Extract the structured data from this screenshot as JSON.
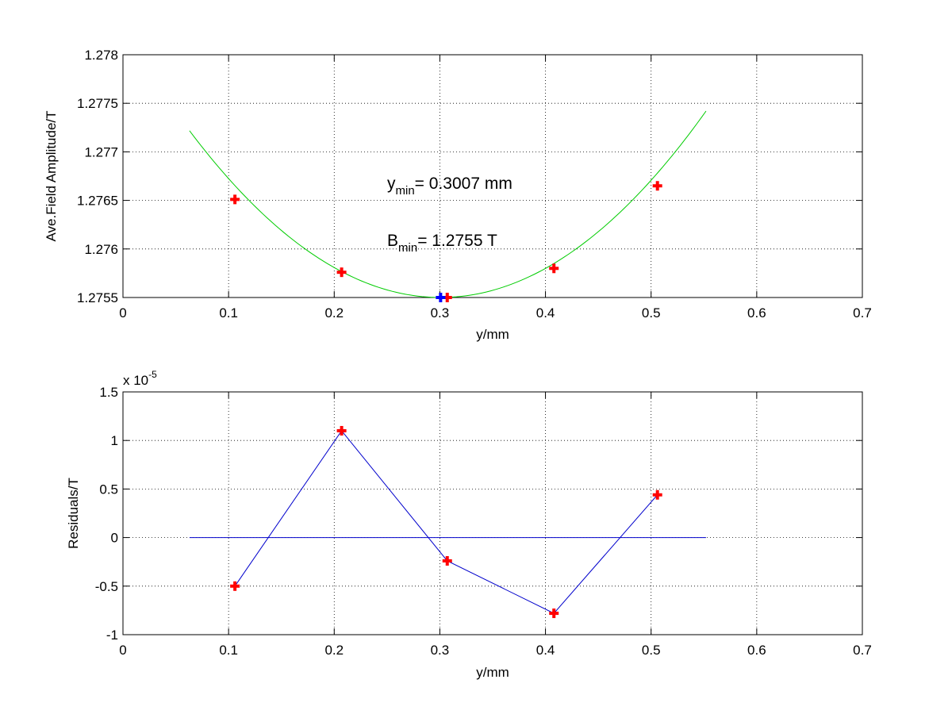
{
  "chart_data": [
    {
      "type": "scatter",
      "title": "",
      "xlabel": "y/mm",
      "ylabel": "Ave.Field Amplitude/T",
      "xlim": [
        0,
        0.7
      ],
      "ylim": [
        1.2755,
        1.278
      ],
      "xticks": [
        "0",
        "0.1",
        "0.2",
        "0.3",
        "0.4",
        "0.5",
        "0.6",
        "0.7"
      ],
      "yticks": [
        "1.2755",
        "1.276",
        "1.2765",
        "1.277",
        "1.2775",
        "1.278"
      ],
      "grid": true,
      "series": [
        {
          "kind": "markers",
          "marker": "plus",
          "color": "#ff0000",
          "x": [
            0.106,
            0.207,
            0.307,
            0.408,
            0.506
          ],
          "y": [
            1.27651,
            1.27576,
            1.2755,
            1.2758,
            1.27665
          ]
        },
        {
          "kind": "fit-curve",
          "color": "#00cc00",
          "fit": "quadratic",
          "x_range": [
            0.063,
            0.552
          ],
          "vertex": [
            0.3007,
            1.2755
          ],
          "curvature": 0.0304
        },
        {
          "kind": "minimum-marker",
          "marker": "plus",
          "color": "#0000ff",
          "x": [
            0.3007
          ],
          "y": [
            1.2755
          ]
        }
      ],
      "annotations": [
        {
          "base": "y",
          "sub": "min",
          "text": "= 0.3007 mm"
        },
        {
          "base": "B",
          "sub": "min",
          "text": "= 1.2755 T"
        }
      ]
    },
    {
      "type": "line",
      "title": "",
      "xlabel": "y/mm",
      "ylabel": "Residuals/T",
      "xlim": [
        0,
        0.7
      ],
      "ylim": [
        -1,
        1.5
      ],
      "y_scale_label": {
        "base": "x 10",
        "exp": "-5"
      },
      "xticks": [
        "0",
        "0.1",
        "0.2",
        "0.3",
        "0.4",
        "0.5",
        "0.6",
        "0.7"
      ],
      "yticks": [
        "-1",
        "-0.5",
        "0",
        "0.5",
        "1",
        "1.5"
      ],
      "grid": true,
      "series": [
        {
          "kind": "line-markers",
          "marker": "plus",
          "color": "#ff0000",
          "line_color": "#0000cc",
          "x": [
            0.106,
            0.207,
            0.307,
            0.408,
            0.506
          ],
          "y": [
            -0.5,
            1.1,
            -0.24,
            -0.78,
            0.44
          ]
        },
        {
          "kind": "zero-line",
          "color": "#0000cc",
          "x": [
            0.063,
            0.552
          ],
          "y": [
            0,
            0
          ]
        }
      ]
    }
  ]
}
